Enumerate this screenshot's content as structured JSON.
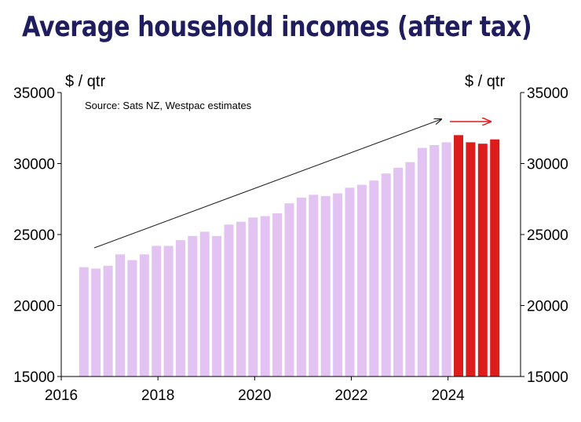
{
  "title": "Average household incomes (after tax)",
  "chart_data": {
    "type": "bar",
    "title": "Average household incomes (after tax)",
    "ylabel_left": "$ / qtr",
    "ylabel_right": "$ / qtr",
    "source": "Source: Sats NZ, Westpac estimates",
    "ylim": [
      15000,
      35000
    ],
    "yticks": [
      15000,
      20000,
      25000,
      30000,
      35000
    ],
    "yticks_right": [
      15000,
      20000,
      25000,
      30000,
      35000
    ],
    "xlim": [
      2016,
      2025.5
    ],
    "xticks": [
      2016,
      2018,
      2020,
      2022,
      2024
    ],
    "grid": false,
    "colors": {
      "actual": "#e2c3f1",
      "forecast": "#dd1c1c",
      "trend_arrow": "#222222",
      "forecast_arrow": "#dd1c1c"
    },
    "series": [
      {
        "name": "",
        "color": "#e2c3f1",
        "x": [
          2016.5,
          2016.75,
          2017.0,
          2017.25,
          2017.5,
          2017.75,
          2018.0,
          2018.25,
          2018.5,
          2018.75,
          2019.0,
          2019.25,
          2019.5,
          2019.75,
          2020.0,
          2020.25,
          2020.5,
          2020.75,
          2021.0,
          2021.25,
          2021.5,
          2021.75,
          2022.0,
          2022.25,
          2022.5,
          2022.75,
          2023.0,
          2023.25,
          2023.5,
          2023.75,
          2024.0
        ],
        "values": [
          22700,
          22600,
          22800,
          23600,
          23200,
          23600,
          24200,
          24200,
          24600,
          24900,
          25200,
          24900,
          25700,
          25900,
          26200,
          26300,
          26500,
          27200,
          27600,
          27800,
          27700,
          27900,
          28300,
          28500,
          28800,
          29300,
          29700,
          30100,
          31100,
          31300,
          31500
        ]
      },
      {
        "name": "",
        "color": "#dd1c1c",
        "x": [
          2024.25,
          2024.5,
          2024.75,
          2025.0
        ],
        "values": [
          32000,
          31500,
          31400,
          31700
        ]
      }
    ]
  }
}
